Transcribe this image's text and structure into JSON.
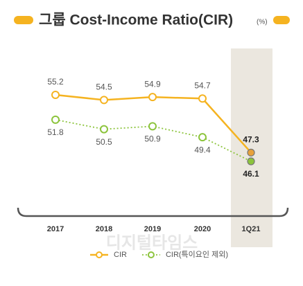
{
  "chart_data": {
    "type": "line",
    "title": "그룹 Cost-Income Ratio(CIR)",
    "unit": "(%)",
    "categories": [
      "2017",
      "2018",
      "2019",
      "2020",
      "1Q21"
    ],
    "series": [
      {
        "name": "CIR",
        "color": "#f5b320",
        "values": [
          55.2,
          54.5,
          54.9,
          54.7,
          47.3
        ]
      },
      {
        "name": "CIR(특이요인 제외)",
        "color": "#8cc43c",
        "values": [
          51.8,
          50.5,
          50.9,
          49.4,
          46.1
        ]
      }
    ],
    "watermark": "디지털타임스"
  }
}
